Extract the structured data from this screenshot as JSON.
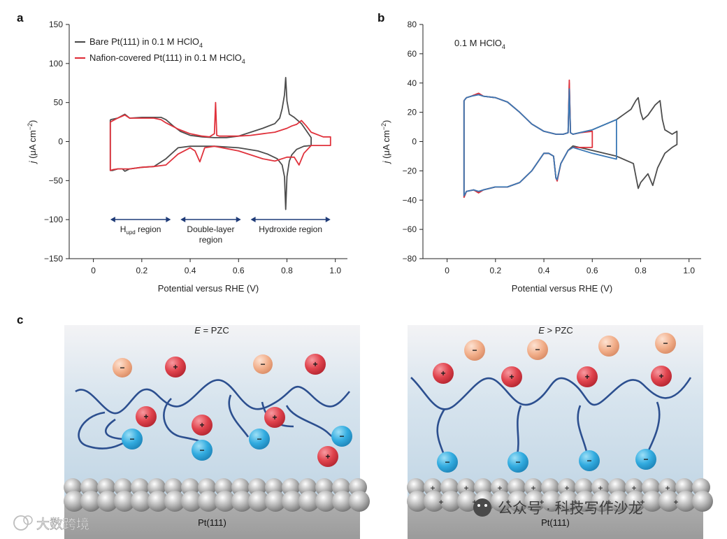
{
  "panels": {
    "a": {
      "letter": "a"
    },
    "b": {
      "letter": "b"
    },
    "c": {
      "letter": "c"
    }
  },
  "colors": {
    "bare": "#4d4d4d",
    "nafion": "#e0323c",
    "blue_trace": "#3a78b5",
    "arrow": "#1f3b78",
    "chain": "#2c4f8f",
    "cation": "#d9404a",
    "anion_blue": "#2ea6d9",
    "anion_orange": "#f0a882"
  },
  "chart_data": [
    {
      "type": "line",
      "panel": "a",
      "xlabel": "Potential versus RHE (V)",
      "ylabel_main": "j",
      "ylabel_unit": "(μA cm",
      "ylabel_sup": "−2",
      "ylabel_end": ")",
      "xlim": [
        -0.1,
        1.05
      ],
      "ylim": [
        -150,
        150
      ],
      "xticks": [
        "0",
        "0.2",
        "0.4",
        "0.6",
        "0.8",
        "1.0"
      ],
      "xtick_values": [
        0,
        0.2,
        0.4,
        0.6,
        0.8,
        1.0
      ],
      "yticks": [
        "150",
        "100",
        "50",
        "0",
        "−50",
        "−100",
        "−150"
      ],
      "ytick_values": [
        150,
        100,
        50,
        0,
        -50,
        -100,
        -150
      ],
      "legend": [
        {
          "text": "Bare Pt(111) in 0.1 M HClO",
          "sub": "4",
          "color_key": "bare"
        },
        {
          "text": "Nafion-covered Pt(111) in 0.1 M HClO",
          "sub": "4",
          "color_key": "nafion"
        }
      ],
      "regions": [
        {
          "label": "H",
          "sub": "upd",
          "label_end": " region",
          "x_from": 0.07,
          "x_to": 0.32
        },
        {
          "label": "Double-layer",
          "label2": "region",
          "x_from": 0.36,
          "x_to": 0.61
        },
        {
          "label": "Hydroxide region",
          "x_from": 0.65,
          "x_to": 0.98
        }
      ],
      "series": [
        {
          "color_key": "bare",
          "x": [
            0.07,
            0.1,
            0.13,
            0.15,
            0.2,
            0.25,
            0.28,
            0.3,
            0.33,
            0.36,
            0.4,
            0.45,
            0.5,
            0.55,
            0.6,
            0.65,
            0.7,
            0.75,
            0.77,
            0.78,
            0.79,
            0.795,
            0.8,
            0.81,
            0.83,
            0.86,
            0.9,
            0.9,
            0.87,
            0.84,
            0.82,
            0.81,
            0.8,
            0.795,
            0.79,
            0.78,
            0.76,
            0.72,
            0.68,
            0.6,
            0.5,
            0.45,
            0.4,
            0.35,
            0.3,
            0.25,
            0.2,
            0.15,
            0.13,
            0.12,
            0.1,
            0.08,
            0.07,
            0.07
          ],
          "y": [
            28,
            30,
            35,
            30,
            31,
            31,
            31,
            28,
            20,
            13,
            8,
            6,
            5,
            5,
            7,
            12,
            17,
            23,
            30,
            42,
            60,
            82,
            52,
            35,
            31,
            23,
            5,
            -5,
            -6,
            -10,
            -17,
            -25,
            -45,
            -87,
            -45,
            -30,
            -22,
            -16,
            -12,
            -8,
            -6,
            -6,
            -6,
            -8,
            -22,
            -32,
            -33,
            -35,
            -38,
            -35,
            -35,
            -37,
            -37,
            28
          ]
        },
        {
          "color_key": "nafion",
          "x": [
            0.07,
            0.1,
            0.13,
            0.15,
            0.2,
            0.25,
            0.28,
            0.3,
            0.35,
            0.4,
            0.45,
            0.48,
            0.5,
            0.505,
            0.51,
            0.52,
            0.55,
            0.6,
            0.65,
            0.7,
            0.75,
            0.8,
            0.82,
            0.84,
            0.86,
            0.88,
            0.9,
            0.95,
            0.98,
            0.98,
            0.95,
            0.9,
            0.87,
            0.85,
            0.83,
            0.8,
            0.75,
            0.7,
            0.6,
            0.5,
            0.46,
            0.44,
            0.42,
            0.4,
            0.35,
            0.3,
            0.25,
            0.2,
            0.15,
            0.12,
            0.1,
            0.08,
            0.07,
            0.07
          ],
          "y": [
            25,
            30,
            34,
            30,
            30,
            30,
            28,
            24,
            16,
            10,
            7,
            6,
            10,
            50,
            8,
            7,
            7,
            7,
            8,
            10,
            12,
            17,
            20,
            22,
            27,
            20,
            12,
            6,
            6,
            -5,
            -5,
            -5,
            -15,
            -30,
            -20,
            -20,
            -25,
            -22,
            -12,
            -6,
            -8,
            -26,
            -12,
            -8,
            -16,
            -30,
            -32,
            -33,
            -35,
            -35,
            -35,
            -36,
            -37,
            25
          ]
        }
      ]
    },
    {
      "type": "line",
      "panel": "b",
      "xlabel": "Potential versus RHE (V)",
      "ylabel_main": "j",
      "ylabel_unit": "(μA cm",
      "ylabel_sup": "−2",
      "ylabel_end": ")",
      "annotation": "0.1 M HClO",
      "annotation_sub": "4",
      "xlim": [
        -0.1,
        1.05
      ],
      "ylim": [
        -80,
        80
      ],
      "xticks": [
        "0",
        "0.2",
        "0.4",
        "0.6",
        "0.8",
        "1.0"
      ],
      "xtick_values": [
        0,
        0.2,
        0.4,
        0.6,
        0.8,
        1.0
      ],
      "yticks": [
        "80",
        "60",
        "40",
        "20",
        "0",
        "−20",
        "−40",
        "−60",
        "−80"
      ],
      "ytick_values": [
        80,
        60,
        40,
        20,
        0,
        -20,
        -40,
        -60,
        -80
      ],
      "series": [
        {
          "color_key": "bare",
          "x": [
            0.07,
            0.08,
            0.1,
            0.13,
            0.15,
            0.2,
            0.25,
            0.3,
            0.35,
            0.4,
            0.45,
            0.48,
            0.5,
            0.505,
            0.51,
            0.52,
            0.6,
            0.7,
            0.76,
            0.78,
            0.79,
            0.8,
            0.81,
            0.83,
            0.86,
            0.88,
            0.89,
            0.9,
            0.93,
            0.95,
            0.95,
            0.93,
            0.9,
            0.87,
            0.85,
            0.83,
            0.8,
            0.79,
            0.77,
            0.7,
            0.6,
            0.52,
            0.5,
            0.47,
            0.455,
            0.45,
            0.44,
            0.42,
            0.4,
            0.35,
            0.3,
            0.25,
            0.2,
            0.15,
            0.13,
            0.11,
            0.08,
            0.07,
            0.07
          ],
          "y": [
            28,
            30,
            31,
            33,
            31,
            30,
            27,
            20,
            12,
            7,
            5,
            5,
            6,
            40,
            6,
            5,
            8,
            15,
            22,
            28,
            30,
            20,
            15,
            18,
            25,
            28,
            15,
            8,
            5,
            7,
            -2,
            -4,
            -8,
            -18,
            -30,
            -22,
            -28,
            -32,
            -15,
            -10,
            -6,
            -3,
            -6,
            -15,
            -26,
            -25,
            -10,
            -8,
            -8,
            -20,
            -28,
            -31,
            -31,
            -33,
            -35,
            -33,
            -34,
            -38,
            28
          ]
        },
        {
          "color_key": "nafion",
          "x": [
            0.07,
            0.08,
            0.1,
            0.13,
            0.15,
            0.2,
            0.25,
            0.3,
            0.35,
            0.4,
            0.45,
            0.48,
            0.5,
            0.505,
            0.51,
            0.52,
            0.55,
            0.6,
            0.6,
            0.55,
            0.52,
            0.5,
            0.47,
            0.455,
            0.45,
            0.44,
            0.42,
            0.4,
            0.35,
            0.3,
            0.25,
            0.2,
            0.15,
            0.13,
            0.11,
            0.08,
            0.07,
            0.07
          ],
          "y": [
            28,
            30,
            31,
            33,
            31,
            30,
            27,
            20,
            12,
            7,
            5,
            5,
            6,
            42,
            6,
            5,
            6,
            7,
            -4,
            -4,
            -4,
            -6,
            -15,
            -27,
            -25,
            -10,
            -8,
            -8,
            -20,
            -28,
            -31,
            -31,
            -33,
            -35,
            -33,
            -34,
            -38,
            28
          ]
        },
        {
          "color_key": "blue_trace",
          "x": [
            0.07,
            0.08,
            0.1,
            0.13,
            0.15,
            0.2,
            0.25,
            0.3,
            0.35,
            0.4,
            0.45,
            0.48,
            0.5,
            0.505,
            0.51,
            0.52,
            0.6,
            0.7,
            0.7,
            0.6,
            0.52,
            0.5,
            0.47,
            0.455,
            0.45,
            0.44,
            0.42,
            0.4,
            0.35,
            0.3,
            0.25,
            0.2,
            0.15,
            0.13,
            0.11,
            0.08,
            0.07,
            0.07
          ],
          "y": [
            28,
            30,
            31,
            32,
            31,
            30,
            27,
            20,
            12,
            7,
            5,
            5,
            6,
            36,
            6,
            5,
            8,
            15,
            -12,
            -8,
            -4,
            -6,
            -15,
            -26,
            -25,
            -10,
            -8,
            -8,
            -20,
            -28,
            -31,
            -31,
            -33,
            -34,
            -33,
            -34,
            -37,
            28
          ]
        }
      ]
    }
  ],
  "schematic": {
    "left": {
      "title_var": "E",
      "title_rest": " = PZC",
      "surface_label": "Pt(111)"
    },
    "right": {
      "title_var": "E",
      "title_rest": " > PZC",
      "surface_label": "Pt(111)"
    },
    "cation_sign": "+",
    "anion_sign": "−"
  },
  "watermarks": {
    "right": "公众号 · 科技写作沙龙",
    "left": "大数跨境"
  }
}
